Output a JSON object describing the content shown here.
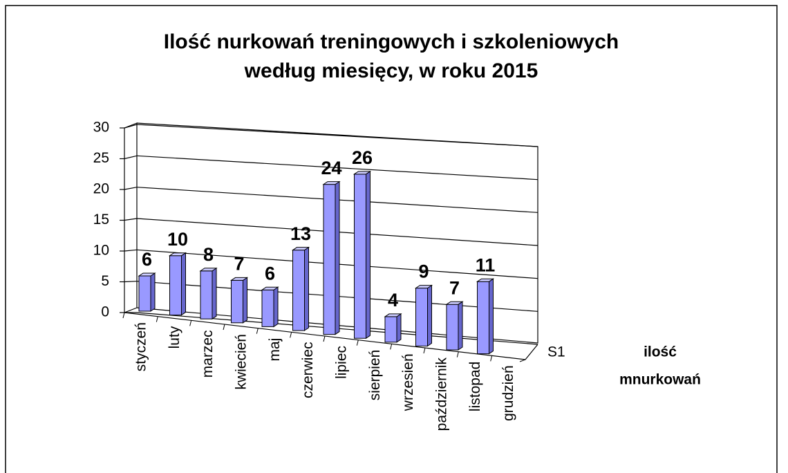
{
  "chart_data": {
    "type": "bar3d",
    "title": [
      "Ilość nurkowań treningowych i szkoleniowych",
      "według miesięcy, w roku 2015"
    ],
    "categories": [
      "styczeń",
      "luty",
      "marzec",
      "kwiecień",
      "maj",
      "czerwiec",
      "lipiec",
      "sierpień",
      "wrzesień",
      "październik",
      "listopad",
      "grudzień"
    ],
    "series": [
      {
        "name": "S1",
        "color": "#9999ff",
        "values": [
          6,
          10,
          8,
          7,
          6,
          13,
          24,
          26,
          4,
          9,
          7,
          11
        ]
      }
    ],
    "legend_title": [
      "ilość",
      "mnurkowań"
    ],
    "ylim": [
      0,
      30
    ],
    "yticks": [
      0,
      5,
      10,
      15,
      20,
      25,
      30
    ],
    "grid": true
  }
}
